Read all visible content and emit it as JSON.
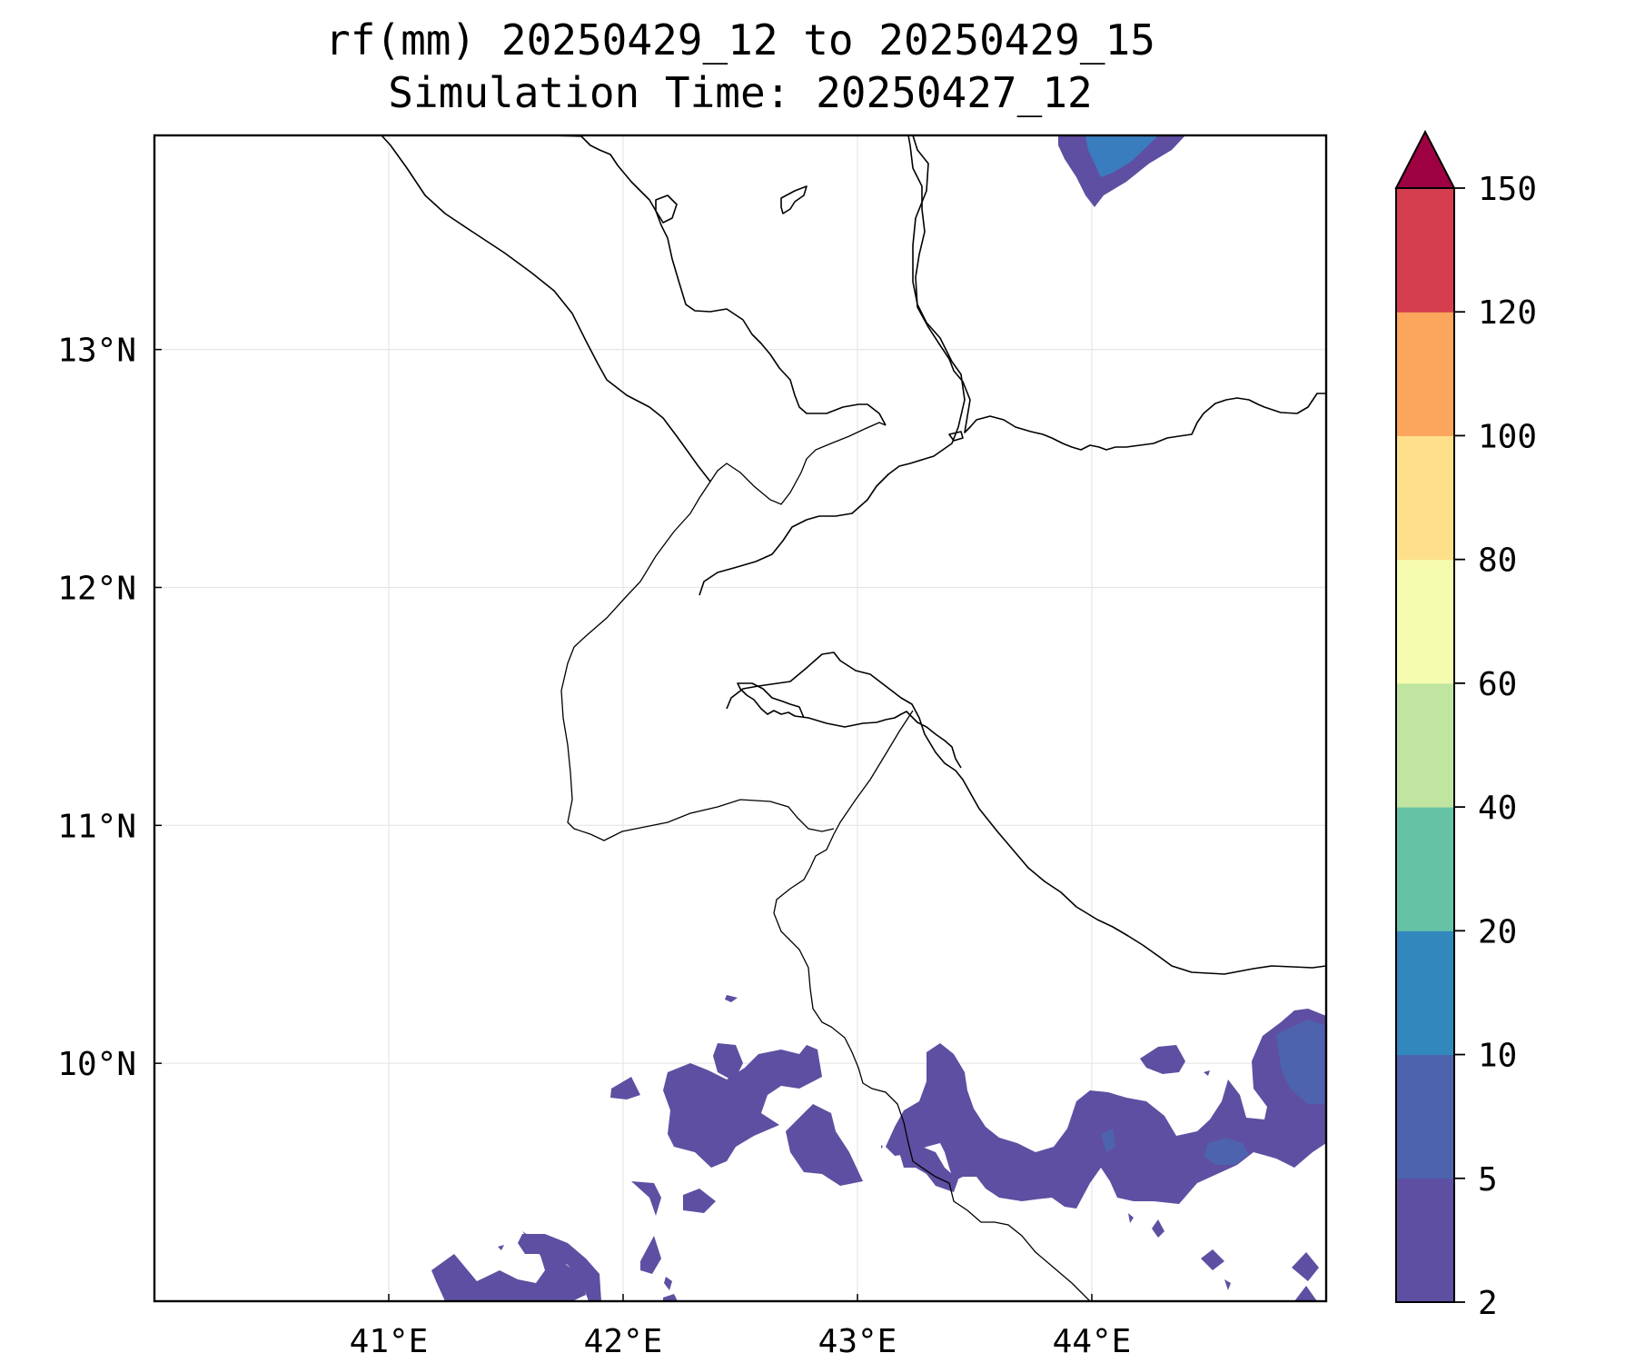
{
  "title": {
    "line1": "rf(mm) 20250429_12 to 20250429_15",
    "line2": "Simulation Time: 20250427_12"
  },
  "map": {
    "lon_range": [
      40.0,
      45.0
    ],
    "lat_range": [
      9.0,
      13.9
    ],
    "x_ticks": [
      {
        "value": 41,
        "label": "41°E"
      },
      {
        "value": 42,
        "label": "42°E"
      },
      {
        "value": 43,
        "label": "43°E"
      },
      {
        "value": 44,
        "label": "44°E"
      }
    ],
    "y_ticks": [
      {
        "value": 13,
        "label": "13°N"
      },
      {
        "value": 12,
        "label": "12°N"
      },
      {
        "value": 11,
        "label": "11°N"
      },
      {
        "value": 10,
        "label": "10°N"
      }
    ],
    "grid": true
  },
  "colorbar": {
    "levels": [
      "2",
      "5",
      "10",
      "20",
      "40",
      "60",
      "80",
      "100",
      "120",
      "150"
    ],
    "colors": [
      "#5e4fa2",
      "#4d63ad",
      "#3288bd",
      "#66c2a5",
      "#bfe5a0",
      "#f5fbaf",
      "#fee08b",
      "#fca55d",
      "#d53e4f"
    ],
    "extend_color": "#9e0142",
    "extend": "max"
  },
  "rain_color_light": "#5e4fa2",
  "rain_color_dark": "#3b3f9c",
  "rain_color_blue": "#3a7dbf"
}
